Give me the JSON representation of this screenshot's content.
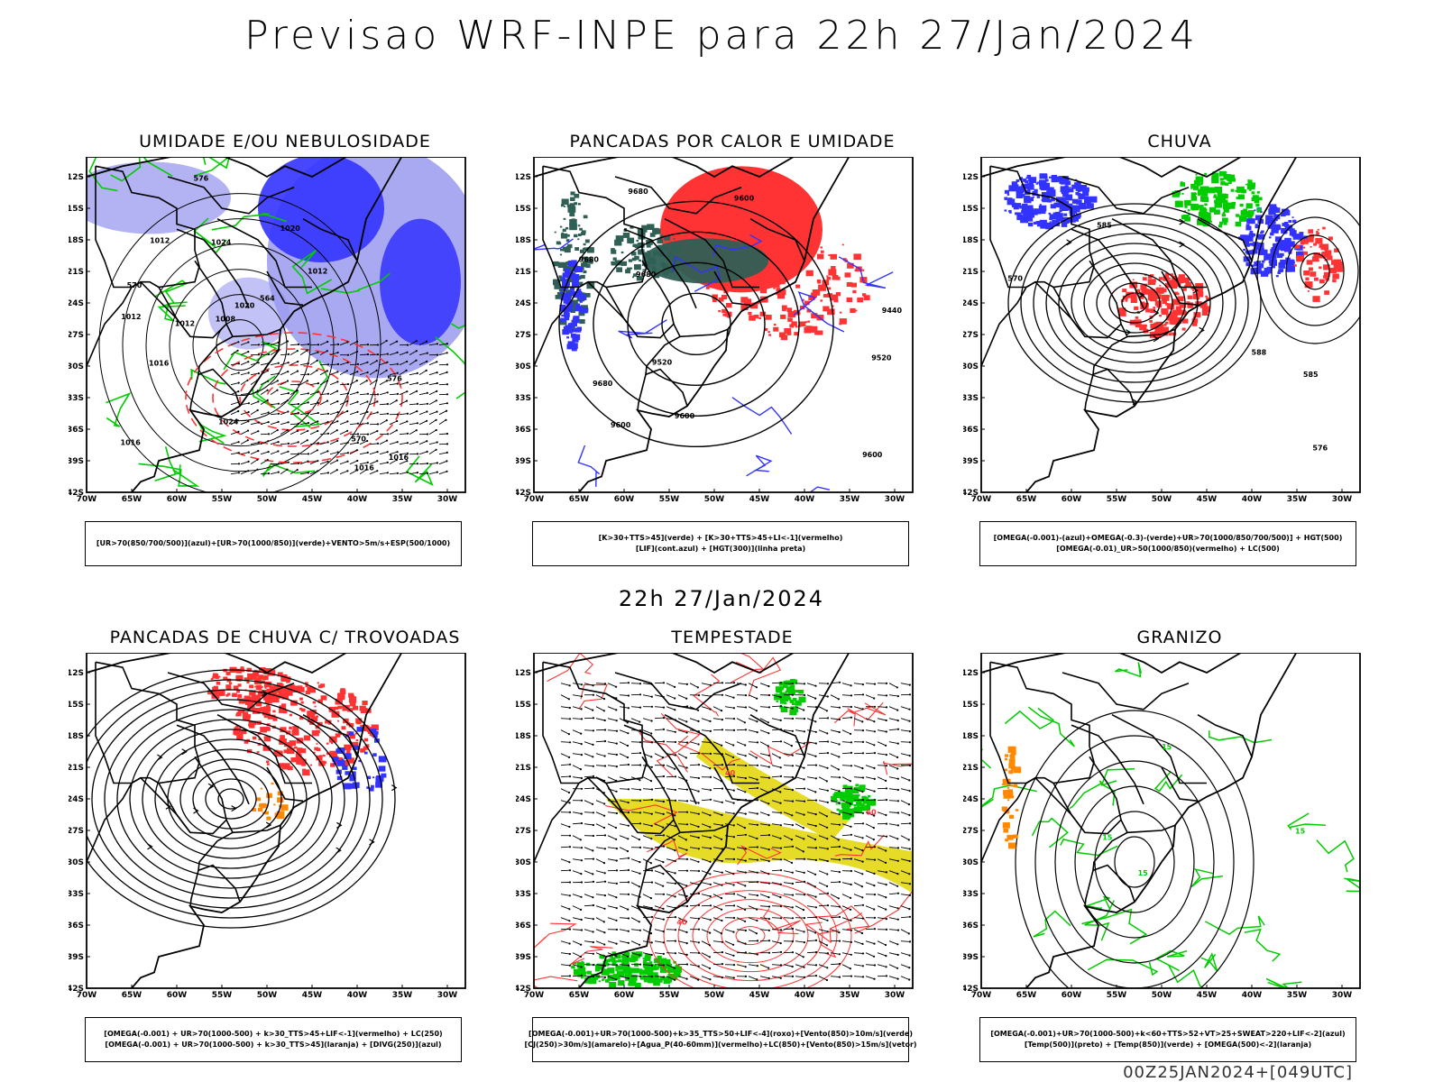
{
  "title": "Previsao WRF-INPE  para 22h 27/Jan/2024",
  "mid_time": "22h 27/Jan/2024",
  "footer": "00Z25JAN2024+[049UTC]",
  "lat_labels": [
    "12S",
    "15S",
    "18S",
    "21S",
    "24S",
    "27S",
    "30S",
    "33S",
    "36S",
    "39S",
    "42S"
  ],
  "lon_labels": [
    "70W",
    "65W",
    "60W",
    "55W",
    "50W",
    "45W",
    "40W",
    "35W",
    "30W"
  ],
  "colors": {
    "blue": "#3333ff",
    "lightblue": "#9a9af0",
    "green": "#00cc00",
    "red": "#ff3333",
    "darkgreen": "#2f5f55",
    "yellow": "#e6dc28",
    "orange": "#ff8800"
  },
  "panels": [
    {
      "title": "UMIDADE E/OU NEBULOSIDADE",
      "legend": [
        "[UR>70(850/700/500)](azul)+[UR>70(1000/850)](verde)+VENTO>5m/s+ESP(500/1000)"
      ],
      "labels": [
        "1012",
        "1008",
        "1012",
        "1016",
        "1016",
        "1020",
        "1024",
        "1012",
        "1016",
        "1012",
        "1016",
        "1020",
        "1024",
        "576",
        "570",
        "564",
        "576",
        "570"
      ]
    },
    {
      "title": "PANCADAS POR CALOR E UMIDADE",
      "legend": [
        "[K>30+TTS>45](verde) + [K>30+TTS>45+LI<-1](vermelho)",
        "[LIF](cont.azul) + [HGT(300)](linha preta)"
      ],
      "labels": [
        "9680",
        "9680",
        "9680",
        "9600",
        "9520",
        "9440",
        "9600",
        "9520",
        "9600",
        "9680",
        "9600"
      ]
    },
    {
      "title": "CHUVA",
      "legend": [
        "[OMEGA(-0.001)-(azul)+OMEGA(-0.3)-(verde)+UR>70(1000/850/700/500)] + HGT(500)",
        "[OMEGA(-0.01)_UR>50(1000/850)(vermelho) + LC(500)"
      ],
      "labels": [
        "585",
        "576",
        "570",
        "585",
        "588"
      ]
    },
    {
      "title": "PANCADAS DE CHUVA C/ TROVOADAS",
      "legend": [
        "[OMEGA(-0.001) + UR>70(1000-500) + k>30_TTS>45+LIF<-1](vermelho) + LC(250)",
        "[OMEGA(-0.001) + UR>70(1000-500) + k>30_TTS>45](laranja) + [DIVG(250)](azul)"
      ],
      "labels": []
    },
    {
      "title": "TEMPESTADE",
      "legend": [
        "[OMEGA(-0.001)+UR>70(1000-500)+k>35_TTS>50+LIF<-4](roxo)+[Vento(850)>10m/s](verde)",
        "[CJ(250)>30m/s](amarelo)+[Agua_P(40-60mm)](vermelho)+LC(850)+[Vento(850)>15m/s](vetor)"
      ],
      "labels": [
        "40",
        "40",
        "50"
      ]
    },
    {
      "title": "GRANIZO",
      "legend": [
        "[OMEGA(-0.001)+UR>70(1000-500)+k<60+TTS>52+VT>25+SWEAT>220+LIF<-2](azul)",
        "[Temp(500)](preto) + [Temp(850)](verde) + [OMEGA(500)<-2](laranja)"
      ],
      "labels": [
        "15",
        "15",
        "15",
        "15"
      ]
    }
  ]
}
